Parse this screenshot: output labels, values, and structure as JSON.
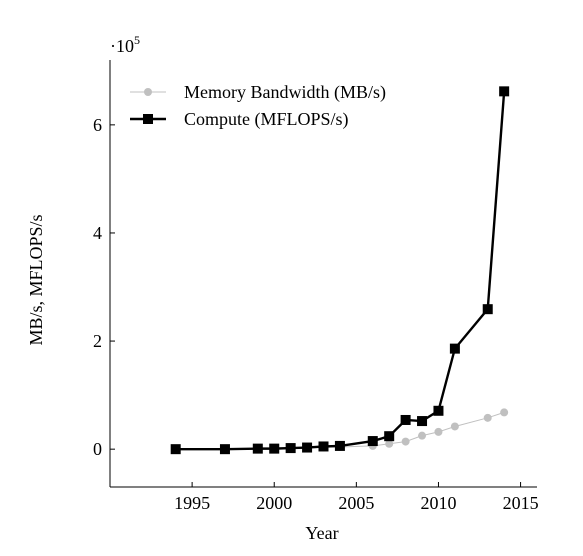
{
  "chart_data": {
    "type": "line",
    "xlabel": "Year",
    "ylabel": "MB/s, MFLOPS/s",
    "y_scale_label_prefix": "·10",
    "y_scale_label_exp": "5",
    "xlim": [
      1990,
      2016
    ],
    "ylim": [
      -0.7,
      7.2
    ],
    "x_ticks": [
      {
        "value": 1995,
        "label": "1995"
      },
      {
        "value": 2000,
        "label": "2000"
      },
      {
        "value": 2005,
        "label": "2005"
      },
      {
        "value": 2010,
        "label": "2010"
      },
      {
        "value": 2015,
        "label": "2015"
      }
    ],
    "y_ticks": [
      {
        "value": 0,
        "label": "0"
      },
      {
        "value": 2,
        "label": "2"
      },
      {
        "value": 4,
        "label": "4"
      },
      {
        "value": 6,
        "label": "6"
      }
    ],
    "legend_position": "top-left",
    "series": [
      {
        "name": "Memory Bandwidth (MB/s)",
        "color": "#c0c0c0",
        "marker": "circle",
        "points": [
          [
            1994,
            0.0
          ],
          [
            1997,
            0.0
          ],
          [
            1999,
            0.01
          ],
          [
            2000,
            0.01
          ],
          [
            2001,
            0.01
          ],
          [
            2002,
            0.02
          ],
          [
            2003,
            0.03
          ],
          [
            2004,
            0.04
          ],
          [
            2006,
            0.06
          ],
          [
            2007,
            0.1
          ],
          [
            2008,
            0.14
          ],
          [
            2009,
            0.25
          ],
          [
            2010,
            0.32
          ],
          [
            2011,
            0.42
          ],
          [
            2013,
            0.58
          ],
          [
            2014,
            0.68
          ]
        ]
      },
      {
        "name": "Compute (MFLOPS/s)",
        "color": "#000000",
        "marker": "square",
        "points": [
          [
            1994,
            0.0
          ],
          [
            1997,
            0.0
          ],
          [
            1999,
            0.01
          ],
          [
            2000,
            0.01
          ],
          [
            2001,
            0.02
          ],
          [
            2002,
            0.03
          ],
          [
            2003,
            0.05
          ],
          [
            2004,
            0.06
          ],
          [
            2006,
            0.15
          ],
          [
            2007,
            0.24
          ],
          [
            2008,
            0.54
          ],
          [
            2009,
            0.52
          ],
          [
            2010,
            0.71
          ],
          [
            2011,
            1.86
          ],
          [
            2013,
            2.59
          ],
          [
            2014,
            6.62
          ]
        ]
      }
    ]
  }
}
